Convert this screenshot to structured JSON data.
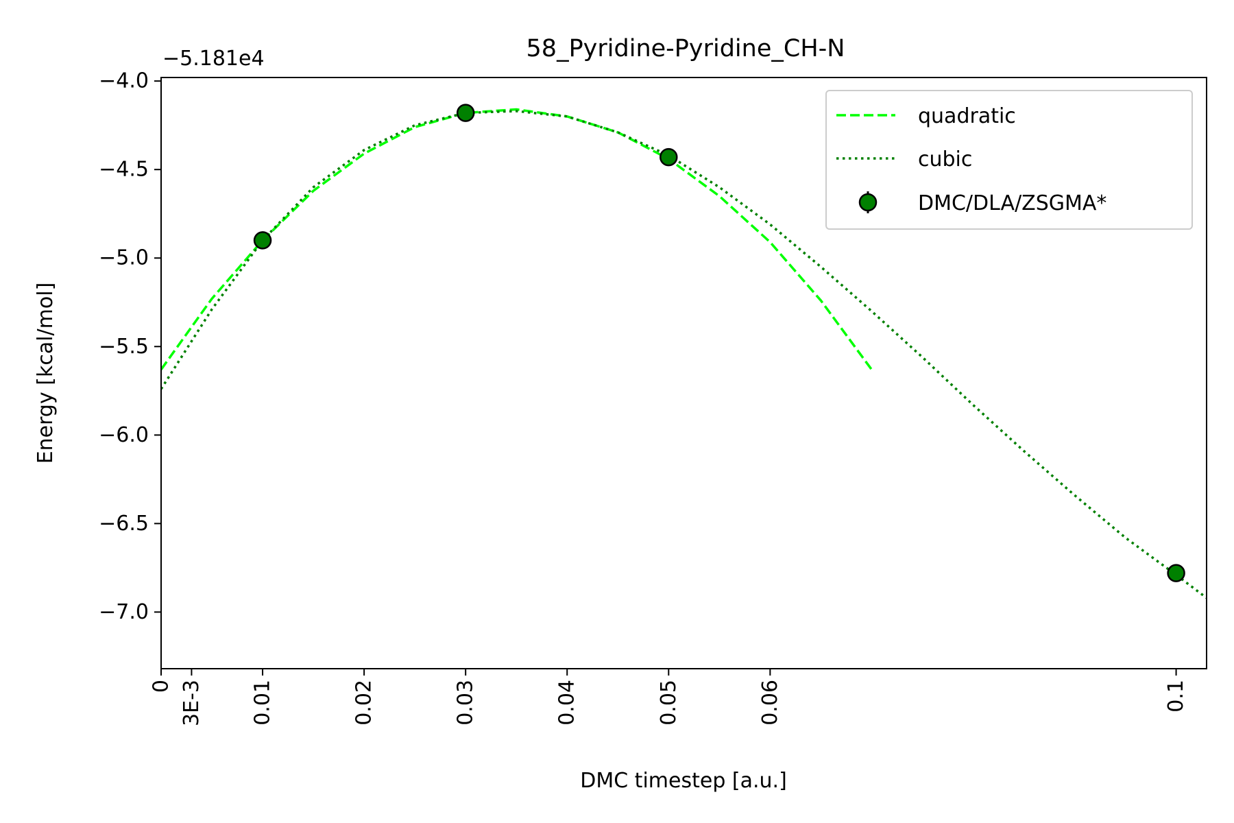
{
  "chart_data": {
    "type": "scatter",
    "title": "58_Pyridine-Pyridine_CH-N",
    "xlabel": "DMC timestep [a.u.]",
    "ylabel": "Energy [kcal/mol]",
    "offset_text": "−5.181e4",
    "xlim": [
      0,
      0.103
    ],
    "ylim": [
      -7.32,
      -3.98
    ],
    "x_ticks": [
      {
        "value": 0,
        "label": "0"
      },
      {
        "value": 0.003,
        "label": "3E-3"
      },
      {
        "value": 0.01,
        "label": "0.01"
      },
      {
        "value": 0.02,
        "label": "0.02"
      },
      {
        "value": 0.03,
        "label": "0.03"
      },
      {
        "value": 0.04,
        "label": "0.04"
      },
      {
        "value": 0.05,
        "label": "0.05"
      },
      {
        "value": 0.06,
        "label": "0.06"
      },
      {
        "value": 0.1,
        "label": "0.1"
      }
    ],
    "y_ticks": [
      {
        "value": -4.0,
        "label": "−4.0"
      },
      {
        "value": -4.5,
        "label": "−4.5"
      },
      {
        "value": -5.0,
        "label": "−5.0"
      },
      {
        "value": -5.5,
        "label": "−5.5"
      },
      {
        "value": -6.0,
        "label": "−6.0"
      },
      {
        "value": -6.5,
        "label": "−6.5"
      },
      {
        "value": -7.0,
        "label": "−7.0"
      }
    ],
    "grid": false,
    "legend_position": "top-right",
    "series": [
      {
        "name": "quadratic",
        "kind": "line",
        "style": "dashed",
        "color": "#00ff00",
        "x": [
          0,
          0.005,
          0.01,
          0.015,
          0.02,
          0.025,
          0.03,
          0.035,
          0.04,
          0.045,
          0.05,
          0.055,
          0.06,
          0.065,
          0.07
        ],
        "y": [
          -5.63,
          -5.23,
          -4.9,
          -4.62,
          -4.41,
          -4.26,
          -4.18,
          -4.16,
          -4.2,
          -4.29,
          -4.44,
          -4.65,
          -4.91,
          -5.24,
          -5.63
        ]
      },
      {
        "name": "cubic",
        "kind": "line",
        "style": "dotted",
        "color": "#008000",
        "x": [
          0,
          0.005,
          0.01,
          0.015,
          0.02,
          0.025,
          0.03,
          0.035,
          0.04,
          0.045,
          0.05,
          0.055,
          0.06,
          0.065,
          0.07,
          0.075,
          0.08,
          0.085,
          0.09,
          0.095,
          0.1,
          0.103
        ],
        "y": [
          -5.74,
          -5.29,
          -4.9,
          -4.6,
          -4.39,
          -4.25,
          -4.18,
          -4.17,
          -4.2,
          -4.29,
          -4.42,
          -4.6,
          -4.81,
          -5.05,
          -5.3,
          -5.56,
          -5.83,
          -6.09,
          -6.34,
          -6.58,
          -6.79,
          -6.92
        ]
      },
      {
        "name": "DMC/DLA/ZSGMA*",
        "kind": "points",
        "color": "#008000",
        "x": [
          0.01,
          0.03,
          0.05,
          0.1
        ],
        "y": [
          -4.9,
          -4.18,
          -4.43,
          -6.78
        ]
      }
    ]
  }
}
